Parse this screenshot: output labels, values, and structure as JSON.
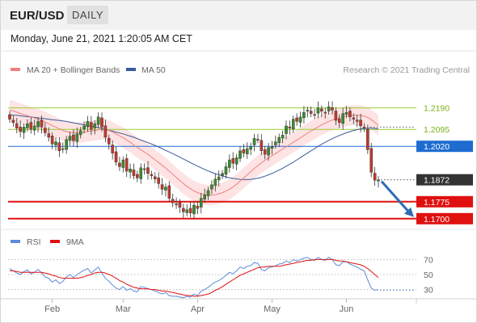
{
  "header": {
    "symbol": "EUR/USD",
    "period": "DAILY",
    "timestamp": "Monday, June 21, 2021 1:20:05 AM CET"
  },
  "copyright": "Research © 2021 Trading Central",
  "colors": {
    "candle_up": "#3d8a2b",
    "candle_down": "#c0392b",
    "ma20": "#f08080",
    "bollinger_fill": "#fde0e0",
    "ma50": "#3a5a9a",
    "green_level": "#9acd32",
    "blue_level": "#1f6cd1",
    "red_level": "#e01010",
    "last_price_tag": "#333333",
    "arrow": "#2e6db4",
    "rsi": "#5b8cdb",
    "rsi_ma": "#e01010"
  },
  "chart_data": [
    {
      "type": "candlestick",
      "legend": [
        "MA 20 + Bollinger Bands",
        "MA 50"
      ],
      "ylim": [
        1.166,
        1.231
      ],
      "x_tick_labels": [
        "Feb",
        "Mar",
        "Apr",
        "May",
        "Jun"
      ],
      "horizontal_levels": [
        {
          "value": 1.219,
          "label": "1.2190",
          "kind": "resistance"
        },
        {
          "value": 1.2095,
          "label": "1.2095",
          "kind": "resistance"
        },
        {
          "value": 1.202,
          "label": "1.2020",
          "kind": "pivot"
        },
        {
          "value": 1.1775,
          "label": "1.1775",
          "kind": "support"
        },
        {
          "value": 1.17,
          "label": "1.1700",
          "kind": "support"
        }
      ],
      "last_price": {
        "value": 1.1872,
        "label": "1.1872"
      },
      "forecast_arrow": {
        "from": 1.1872,
        "to": 1.17
      },
      "close_series": [
        1.214,
        1.2125,
        1.21,
        1.2085,
        1.2105,
        1.212,
        1.2095,
        1.211,
        1.213,
        1.2105,
        1.208,
        1.206,
        1.203,
        1.204,
        1.2,
        1.201,
        1.205,
        1.2065,
        1.2045,
        1.2075,
        1.209,
        1.211,
        1.213,
        1.2095,
        1.212,
        1.215,
        1.2105,
        1.206,
        1.203,
        1.199,
        1.195,
        1.193,
        1.196,
        1.191,
        1.192,
        1.189,
        1.188,
        1.1925,
        1.192,
        1.19,
        1.189,
        1.1875,
        1.1855,
        1.183,
        1.184,
        1.179,
        1.177,
        1.1765,
        1.175,
        1.173,
        1.174,
        1.1725,
        1.176,
        1.1745,
        1.179,
        1.1805,
        1.1825,
        1.185,
        1.1875,
        1.1885,
        1.19,
        1.193,
        1.196,
        1.1945,
        1.197,
        1.2,
        1.199,
        1.201,
        1.202,
        1.2055,
        1.205,
        1.2,
        1.1985,
        1.2015,
        1.202,
        1.204,
        1.206,
        1.207,
        1.211,
        1.21,
        1.214,
        1.213,
        1.215,
        1.217,
        1.218,
        1.2165,
        1.216,
        1.219,
        1.2175,
        1.217,
        1.2195,
        1.218,
        1.2135,
        1.2125,
        1.2165,
        1.217,
        1.215,
        1.214,
        1.213,
        1.211,
        1.21,
        1.2005,
        1.1905,
        1.187,
        1.1872
      ],
      "ma20_series": [
        1.218,
        1.2176,
        1.2171,
        1.2165,
        1.216,
        1.2156,
        1.215,
        1.2145,
        1.214,
        1.2135,
        1.2128,
        1.212,
        1.2112,
        1.2105,
        1.2098,
        1.209,
        1.2085,
        1.2082,
        1.208,
        1.208,
        1.2081,
        1.2083,
        1.2086,
        1.2088,
        1.209,
        1.2093,
        1.2095,
        1.2094,
        1.209,
        1.2083,
        1.2075,
        1.2066,
        1.2058,
        1.2048,
        1.2038,
        1.2026,
        1.2015,
        1.2005,
        1.1995,
        1.1985,
        1.1972,
        1.196,
        1.1948,
        1.1936,
        1.1924,
        1.191,
        1.1896,
        1.1882,
        1.1868,
        1.1855,
        1.1843,
        1.1832,
        1.1823,
        1.1815,
        1.181,
        1.1806,
        1.1804,
        1.1804,
        1.1806,
        1.181,
        1.1815,
        1.1822,
        1.183,
        1.184,
        1.1852,
        1.1866,
        1.188,
        1.1894,
        1.1908,
        1.1922,
        1.1935,
        1.1947,
        1.1958,
        1.1968,
        1.1978,
        1.1988,
        1.1998,
        1.2008,
        1.2018,
        1.2028,
        1.2038,
        1.2048,
        1.2058,
        1.2068,
        1.2078,
        1.2088,
        1.2097,
        1.2106,
        1.2115,
        1.2122,
        1.213,
        1.2136,
        1.2141,
        1.2146,
        1.215,
        1.2154,
        1.2156,
        1.2157,
        1.2157,
        1.2156,
        1.2154,
        1.2148,
        1.2138,
        1.2126,
        1.2112
      ],
      "ma50_series": [
        1.216,
        1.2158,
        1.2157,
        1.2155,
        1.2153,
        1.2151,
        1.215,
        1.2148,
        1.2146,
        1.2144,
        1.2142,
        1.214,
        1.2138,
        1.2136,
        1.2134,
        1.2132,
        1.213,
        1.2127,
        1.2124,
        1.2121,
        1.2118,
        1.2115,
        1.2112,
        1.2109,
        1.2106,
        1.2103,
        1.2099,
        1.2095,
        1.2091,
        1.2087,
        1.2083,
        1.2079,
        1.2075,
        1.207,
        1.2065,
        1.206,
        1.2054,
        1.2048,
        1.2042,
        1.2036,
        1.203,
        1.2024,
        1.2017,
        1.201,
        1.2002,
        1.1995,
        1.1988,
        1.198,
        1.1972,
        1.1964,
        1.1956,
        1.1948,
        1.194,
        1.1932,
        1.1925,
        1.1918,
        1.1911,
        1.1905,
        1.1899,
        1.1894,
        1.1889,
        1.1885,
        1.1881,
        1.1878,
        1.1876,
        1.1874,
        1.1873,
        1.1873,
        1.1874,
        1.1876,
        1.1879,
        1.1883,
        1.1888,
        1.1894,
        1.19,
        1.1907,
        1.1915,
        1.1923,
        1.1932,
        1.1941,
        1.195,
        1.196,
        1.197,
        1.198,
        1.199,
        1.2,
        1.201,
        1.202,
        1.2029,
        1.2038,
        1.2046,
        1.2054,
        1.2061,
        1.2068,
        1.2074,
        1.208,
        1.2085,
        1.209,
        1.2094,
        1.2097,
        1.2099,
        1.21,
        1.21,
        1.2099,
        1.2097
      ],
      "bollinger_width": 0.0045
    },
    {
      "type": "line",
      "legend": [
        "RSI",
        "9MA"
      ],
      "ylim": [
        22,
        78
      ],
      "y_tick_labels": [
        "70",
        "50",
        "30"
      ],
      "y_ticks": [
        70,
        50,
        30
      ],
      "rsi_series": [
        58,
        55,
        52,
        50,
        54,
        56,
        51,
        53,
        57,
        52,
        47,
        45,
        40,
        43,
        38,
        41,
        47,
        50,
        46,
        50,
        53,
        56,
        58,
        52,
        56,
        60,
        52,
        45,
        41,
        36,
        32,
        30,
        34,
        29,
        31,
        28,
        27,
        34,
        33,
        31,
        30,
        28,
        26,
        24,
        26,
        22,
        21,
        21,
        20,
        19,
        21,
        20,
        24,
        22,
        28,
        30,
        33,
        37,
        40,
        42,
        45,
        49,
        53,
        51,
        55,
        60,
        58,
        61,
        62,
        66,
        65,
        57,
        55,
        59,
        60,
        62,
        64,
        65,
        68,
        66,
        70,
        68,
        70,
        72,
        73,
        70,
        69,
        73,
        70,
        69,
        73,
        70,
        63,
        62,
        67,
        67,
        64,
        62,
        60,
        57,
        55,
        43,
        32,
        29,
        30
      ],
      "rsi_ma_series": [
        55,
        55,
        54,
        53,
        53,
        53,
        53,
        53,
        53,
        53,
        52,
        51,
        49,
        48,
        46,
        45,
        45,
        45,
        45,
        45,
        46,
        47,
        49,
        50,
        52,
        53,
        53,
        52,
        50,
        48,
        45,
        42,
        40,
        37,
        35,
        33,
        32,
        31,
        31,
        31,
        30,
        30,
        29,
        28,
        28,
        27,
        26,
        25,
        24,
        23,
        22,
        22,
        21,
        21,
        22,
        23,
        24,
        26,
        29,
        31,
        34,
        37,
        40,
        43,
        46,
        49,
        51,
        53,
        55,
        57,
        59,
        60,
        60,
        61,
        61,
        61,
        61,
        62,
        63,
        64,
        65,
        66,
        67,
        68,
        69,
        69,
        70,
        70,
        70,
        70,
        70,
        70,
        69,
        68,
        68,
        67,
        66,
        65,
        64,
        63,
        61,
        58,
        54,
        50,
        46
      ],
      "rsi_last_dotted": 29
    }
  ]
}
